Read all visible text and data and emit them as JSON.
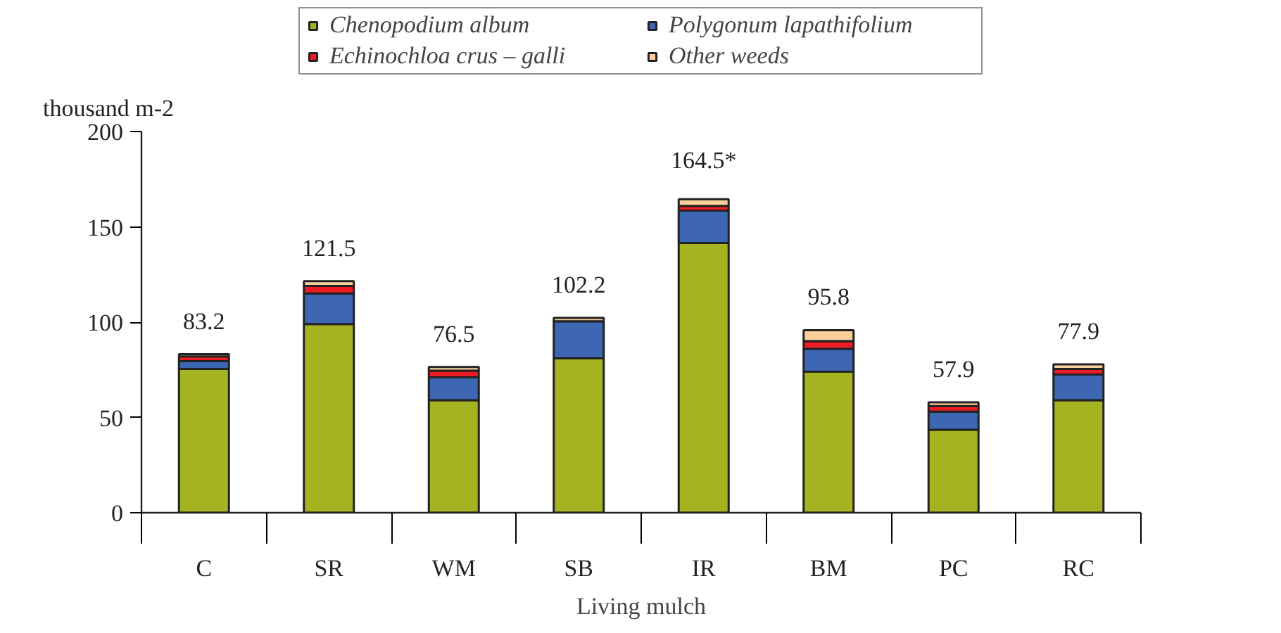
{
  "chart_data": {
    "type": "bar",
    "stacked": true,
    "xlabel": "Living mulch",
    "ylabel": "thousand m-2",
    "categories": [
      "C",
      "SR",
      "WM",
      "SB",
      "IR",
      "BM",
      "PC",
      "RC"
    ],
    "series": [
      {
        "name": "Chenopodium album",
        "color": "#a5b321",
        "values": [
          75.5,
          99,
          59,
          81,
          141.5,
          74,
          43.5,
          59
        ]
      },
      {
        "name": "Polygonum lapathifolium",
        "color": "#3d66b3",
        "values": [
          4,
          16,
          12,
          19.5,
          17,
          12,
          9.5,
          13.5
        ]
      },
      {
        "name": "Echinochloa crus – galli",
        "color": "#ee1c25",
        "values": [
          2.5,
          4,
          3.5,
          null,
          2.5,
          4,
          3,
          3
        ]
      },
      {
        "name": "Other weeds",
        "color": "#fdd09b",
        "values": [
          1.2,
          2.5,
          2,
          1.7,
          3.5,
          5.8,
          1.9,
          2.4
        ]
      }
    ],
    "totals": [
      "83.2",
      "121.5",
      "76.5",
      "102.2",
      "164.5*",
      "95.8",
      "57.9",
      "77.9"
    ],
    "ylim": [
      0,
      200
    ],
    "yticks": [
      0,
      50,
      100,
      150,
      200
    ],
    "grid": false,
    "legend": "top"
  }
}
